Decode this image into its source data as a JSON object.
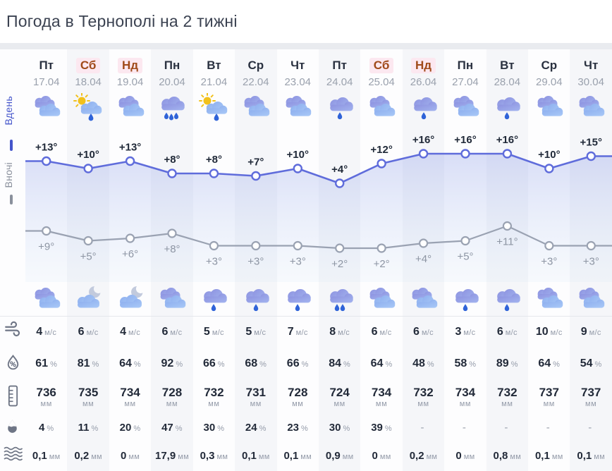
{
  "title": "Погода в Тернополі на 2 тижні",
  "view_tabs": {
    "day": "Вдень",
    "night": "Вночі"
  },
  "units": {
    "wind": "м/с",
    "percent": "%",
    "pressure": "мм",
    "amount": "мм"
  },
  "row_icons": {
    "wind": "wind-icon",
    "humidity": "humidity-drop-icon",
    "pressure": "barometer-ruler-icon",
    "precip_probability": "raindrop-icon",
    "precip_amount": "waves-icon"
  },
  "colors": {
    "day_line": "#5f6cdb",
    "night_line": "#9aa2b2",
    "weekend_text": "#a04a19",
    "weekend_badge": "#fce8f0",
    "area_fill_top": "#7a8ce4",
    "shade_column": "#f5f6f9"
  },
  "columns": [
    {
      "weekday": "Пт",
      "date": "17.04",
      "weekend": false,
      "day_icon": "cloudy",
      "night_icon": "cloudy",
      "day_temp": "+13°",
      "night_temp": "+9°",
      "wind": "4",
      "humidity": "61",
      "pressure": "736",
      "precip_probability": "4",
      "precip_amount": "0,1"
    },
    {
      "weekday": "Сб",
      "date": "18.04",
      "weekend": true,
      "day_icon": "sun-rain",
      "night_icon": "moon-cloud",
      "day_temp": "+10°",
      "night_temp": "+5°",
      "wind": "6",
      "humidity": "81",
      "pressure": "735",
      "precip_probability": "11",
      "precip_amount": "0,2"
    },
    {
      "weekday": "Нд",
      "date": "19.04",
      "weekend": true,
      "day_icon": "cloudy",
      "night_icon": "moon-cloud",
      "day_temp": "+13°",
      "night_temp": "+6°",
      "wind": "4",
      "humidity": "64",
      "pressure": "734",
      "precip_probability": "20",
      "precip_amount": "0"
    },
    {
      "weekday": "Пн",
      "date": "20.04",
      "weekend": false,
      "day_icon": "rain-3",
      "night_icon": "cloudy",
      "day_temp": "+8°",
      "night_temp": "+8°",
      "wind": "6",
      "humidity": "92",
      "pressure": "728",
      "precip_probability": "47",
      "precip_amount": "17,9"
    },
    {
      "weekday": "Вт",
      "date": "21.04",
      "weekend": false,
      "day_icon": "sun-rain",
      "night_icon": "rain-1",
      "day_temp": "+8°",
      "night_temp": "+3°",
      "wind": "5",
      "humidity": "66",
      "pressure": "732",
      "precip_probability": "30",
      "precip_amount": "0,3"
    },
    {
      "weekday": "Ср",
      "date": "22.04",
      "weekend": false,
      "day_icon": "cloudy",
      "night_icon": "rain-1",
      "day_temp": "+7°",
      "night_temp": "+3°",
      "wind": "5",
      "humidity": "68",
      "pressure": "731",
      "precip_probability": "24",
      "precip_amount": "0,1"
    },
    {
      "weekday": "Чт",
      "date": "23.04",
      "weekend": false,
      "day_icon": "cloudy",
      "night_icon": "rain-1",
      "day_temp": "+10°",
      "night_temp": "+3°",
      "wind": "7",
      "humidity": "66",
      "pressure": "728",
      "precip_probability": "23",
      "precip_amount": "0,1"
    },
    {
      "weekday": "Пт",
      "date": "24.04",
      "weekend": false,
      "day_icon": "rain-1",
      "night_icon": "rain-2",
      "day_temp": "+4°",
      "night_temp": "+2°",
      "wind": "8",
      "humidity": "84",
      "pressure": "724",
      "precip_probability": "30",
      "precip_amount": "0,9"
    },
    {
      "weekday": "Сб",
      "date": "25.04",
      "weekend": true,
      "day_icon": "cloudy",
      "night_icon": "cloudy",
      "day_temp": "+12°",
      "night_temp": "+2°",
      "wind": "6",
      "humidity": "64",
      "pressure": "734",
      "precip_probability": "39",
      "precip_amount": "0"
    },
    {
      "weekday": "Нд",
      "date": "26.04",
      "weekend": true,
      "day_icon": "rain-1",
      "night_icon": "cloudy",
      "day_temp": "+16°",
      "night_temp": "+4°",
      "wind": "6",
      "humidity": "48",
      "pressure": "732",
      "precip_probability": "-",
      "precip_amount": "0,2"
    },
    {
      "weekday": "Пн",
      "date": "27.04",
      "weekend": false,
      "day_icon": "cloudy",
      "night_icon": "rain-1",
      "day_temp": "+16°",
      "night_temp": "+5°",
      "wind": "3",
      "humidity": "58",
      "pressure": "734",
      "precip_probability": "-",
      "precip_amount": "0"
    },
    {
      "weekday": "Вт",
      "date": "28.04",
      "weekend": false,
      "day_icon": "rain-1",
      "night_icon": "rain-1",
      "day_temp": "+16°",
      "night_temp": "+11°",
      "wind": "6",
      "humidity": "89",
      "pressure": "732",
      "precip_probability": "-",
      "precip_amount": "0,8"
    },
    {
      "weekday": "Ср",
      "date": "29.04",
      "weekend": false,
      "day_icon": "cloudy",
      "night_icon": "cloudy",
      "day_temp": "+10°",
      "night_temp": "+3°",
      "wind": "10",
      "humidity": "64",
      "pressure": "737",
      "precip_probability": "-",
      "precip_amount": "0,1"
    },
    {
      "weekday": "Чт",
      "date": "30.04",
      "weekend": false,
      "day_icon": "cloudy",
      "night_icon": "cloudy",
      "day_temp": "+15°",
      "night_temp": "+3°",
      "wind": "9",
      "humidity": "54",
      "pressure": "737",
      "precip_probability": "-",
      "precip_amount": "0,1"
    }
  ],
  "chart_data": {
    "type": "line",
    "x": [
      "17.04",
      "18.04",
      "19.04",
      "20.04",
      "21.04",
      "22.04",
      "23.04",
      "24.04",
      "25.04",
      "26.04",
      "27.04",
      "28.04",
      "29.04",
      "30.04"
    ],
    "series": [
      {
        "name": "Вдень",
        "color": "#5f6cdb",
        "values": [
          13,
          10,
          13,
          8,
          8,
          7,
          10,
          4,
          12,
          16,
          16,
          16,
          10,
          15
        ],
        "labels": [
          "+13°",
          "+10°",
          "+13°",
          "+8°",
          "+8°",
          "+7°",
          "+10°",
          "+4°",
          "+12°",
          "+16°",
          "+16°",
          "+16°",
          "+10°",
          "+15°"
        ]
      },
      {
        "name": "Вночі",
        "color": "#9aa2b2",
        "values": [
          9,
          5,
          6,
          8,
          3,
          3,
          3,
          2,
          2,
          4,
          5,
          11,
          3,
          3
        ],
        "labels": [
          "+9°",
          "+5°",
          "+6°",
          "+8°",
          "+3°",
          "+3°",
          "+3°",
          "+2°",
          "+2°",
          "+4°",
          "+5°",
          "+11°",
          "+3°",
          "+3°"
        ]
      }
    ],
    "ylabel": "°C",
    "ylim": [
      0,
      18
    ],
    "grid": false,
    "area_fill_under_day_series": true,
    "legend_position": "left-rotated"
  }
}
